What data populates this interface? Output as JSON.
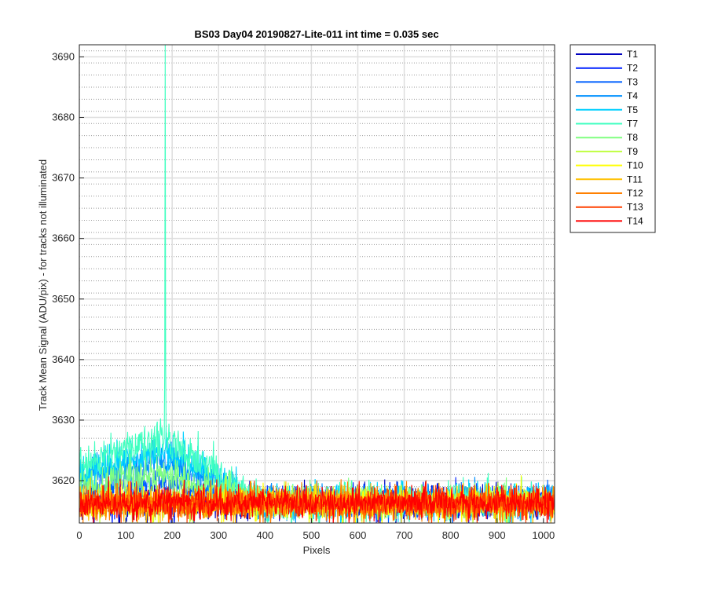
{
  "chart_data": {
    "type": "line",
    "title": "BS03 Day04 20190827-Lite-011 int time = 0.035 sec",
    "xlabel": "Pixels",
    "ylabel": "Track Mean Signal (ADU/pix) - for tracks not illuminated",
    "xlim": [
      0,
      1024
    ],
    "ylim": [
      3613,
      3692
    ],
    "xticks": [
      0,
      100,
      200,
      300,
      400,
      500,
      600,
      700,
      800,
      900,
      1000
    ],
    "yticks": [
      3620,
      3630,
      3640,
      3650,
      3660,
      3670,
      3680,
      3690
    ],
    "grid": true,
    "minor_grid": true,
    "legend_position": "outside-top-right",
    "series": [
      {
        "name": "T1",
        "color": "#0000bf",
        "baseline": 3616.3,
        "noise": 1.3,
        "bump": 0.0,
        "spike": 0
      },
      {
        "name": "T2",
        "color": "#0020ff",
        "baseline": 3616.5,
        "noise": 1.3,
        "bump": 0.0,
        "spike": 0
      },
      {
        "name": "T3",
        "color": "#0060ff",
        "baseline": 3616.5,
        "noise": 1.3,
        "bump": 3.0,
        "spike": 0
      },
      {
        "name": "T4",
        "color": "#0090ff",
        "baseline": 3616.5,
        "noise": 1.3,
        "bump": 7.0,
        "spike": 0
      },
      {
        "name": "T5",
        "color": "#00d0ff",
        "baseline": 3616.5,
        "noise": 1.4,
        "bump": 8.5,
        "spike": 0
      },
      {
        "name": "T7",
        "color": "#40ffc0",
        "baseline": 3616.5,
        "noise": 1.5,
        "bump": 10.5,
        "spike": 3692
      },
      {
        "name": "T8",
        "color": "#80ff80",
        "baseline": 3616.5,
        "noise": 1.3,
        "bump": 4.5,
        "spike": 0
      },
      {
        "name": "T9",
        "color": "#c0ff40",
        "baseline": 3616.4,
        "noise": 1.3,
        "bump": 0.0,
        "spike": 0
      },
      {
        "name": "T10",
        "color": "#ffff00",
        "baseline": 3616.3,
        "noise": 1.3,
        "bump": 0.0,
        "spike": 0
      },
      {
        "name": "T11",
        "color": "#ffc000",
        "baseline": 3616.2,
        "noise": 1.3,
        "bump": 0.0,
        "spike": 0
      },
      {
        "name": "T12",
        "color": "#ff8000",
        "baseline": 3616.2,
        "noise": 1.3,
        "bump": 0.0,
        "spike": 0
      },
      {
        "name": "T13",
        "color": "#ff4000",
        "baseline": 3616.3,
        "noise": 1.3,
        "bump": 0.0,
        "spike": 0
      },
      {
        "name": "T14",
        "color": "#ff0000",
        "baseline": 3616.4,
        "noise": 1.3,
        "bump": 0.0,
        "spike": 0
      }
    ],
    "peak_pixel": 185,
    "bump_range": [
      0,
      380
    ]
  }
}
